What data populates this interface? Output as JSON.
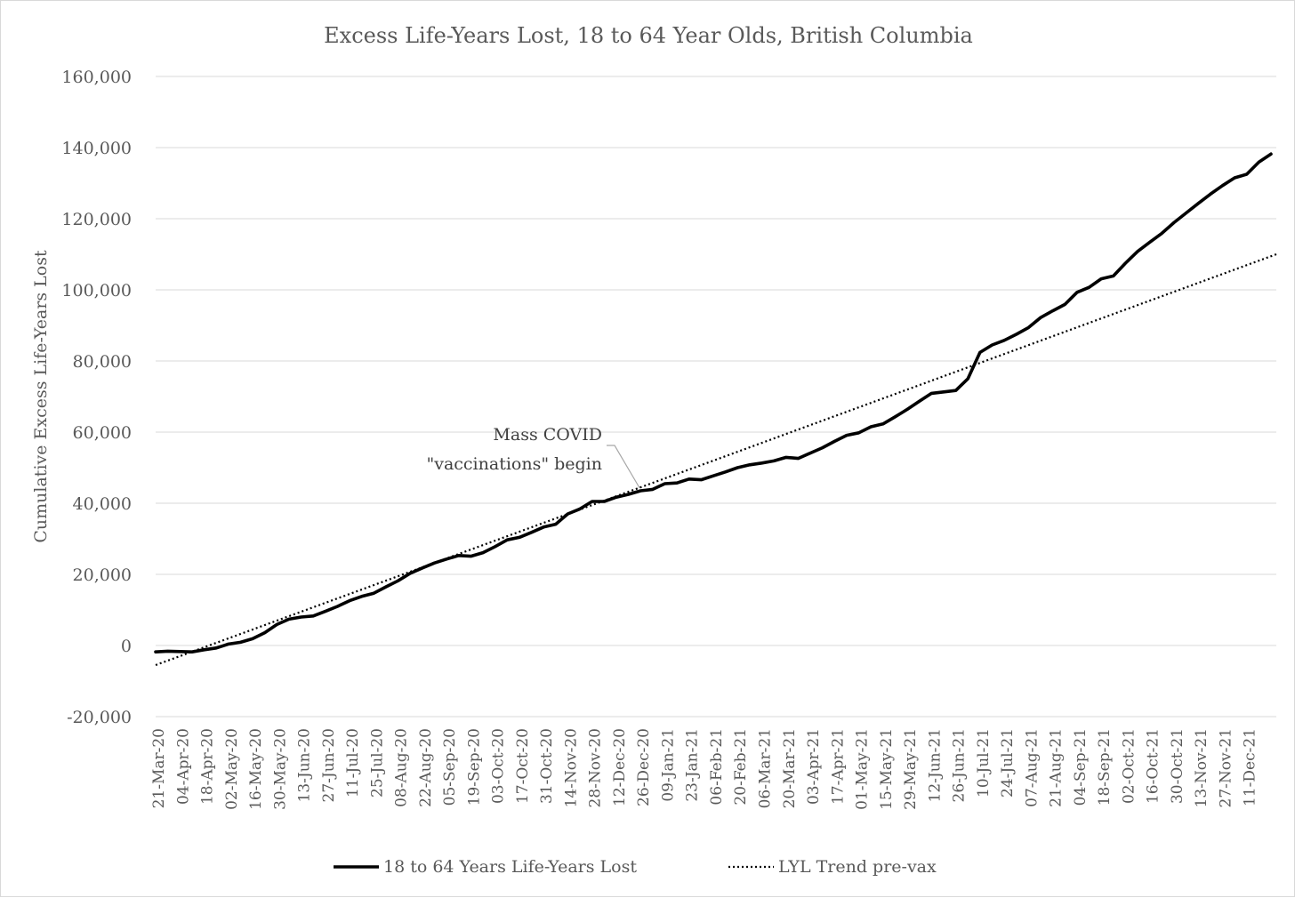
{
  "chart_data": {
    "type": "line",
    "title": "Excess Life-Years Lost, 18 to 64 Year Olds, British Columbia",
    "ylabel": "Cumulative Excess Life-Years Lost",
    "xlabel": "",
    "ylim": [
      -20000,
      160000
    ],
    "yticks": [
      -20000,
      0,
      20000,
      40000,
      60000,
      80000,
      100000,
      120000,
      140000,
      160000
    ],
    "ytick_labels": [
      "-20,000",
      "0",
      "20,000",
      "40,000",
      "60,000",
      "80,000",
      "100,000",
      "120,000",
      "140,000",
      "160,000"
    ],
    "grid": true,
    "legend_position": "bottom",
    "x_tick_labels": [
      "21-Mar-20",
      "04-Apr-20",
      "18-Apr-20",
      "02-May-20",
      "16-May-20",
      "30-May-20",
      "13-Jun-20",
      "27-Jun-20",
      "11-Jul-20",
      "25-Jul-20",
      "08-Aug-20",
      "22-Aug-20",
      "05-Sep-20",
      "19-Sep-20",
      "03-Oct-20",
      "17-Oct-20",
      "31-Oct-20",
      "14-Nov-20",
      "28-Nov-20",
      "12-Dec-20",
      "26-Dec-20",
      "09-Jan-21",
      "23-Jan-21",
      "06-Feb-21",
      "20-Feb-21",
      "06-Mar-21",
      "20-Mar-21",
      "03-Apr-21",
      "17-Apr-21",
      "01-May-21",
      "15-May-21",
      "29-May-21",
      "12-Jun-21",
      "26-Jun-21",
      "10-Jul-21",
      "24-Jul-21",
      "07-Aug-21",
      "21-Aug-21",
      "04-Sep-21",
      "18-Sep-21",
      "02-Oct-21",
      "16-Oct-21",
      "30-Oct-21",
      "13-Nov-21",
      "27-Nov-21",
      "11-Dec-21"
    ],
    "series": [
      {
        "name": "18 to 64 Years Life-Years Lost",
        "style": "solid",
        "color": "#000000",
        "values": [
          -1800,
          -1600,
          -1700,
          -1800,
          -1200,
          -700,
          400,
          900,
          1900,
          3600,
          5900,
          7400,
          8000,
          8300,
          9600,
          11000,
          12600,
          13800,
          14700,
          16500,
          18200,
          20300,
          21800,
          23200,
          24300,
          25300,
          25100,
          26100,
          27800,
          29700,
          30400,
          31800,
          33300,
          34100,
          37000,
          38400,
          40500,
          40500,
          41700,
          42500,
          43500,
          43900,
          45500,
          45700,
          46800,
          46600,
          47700,
          48800,
          50000,
          50800,
          51300,
          51900,
          52900,
          52600,
          54100,
          55600,
          57400,
          59100,
          59800,
          61500,
          62300,
          64300,
          66400,
          68700,
          70900,
          71300,
          71700,
          75000,
          82400,
          84500,
          85800,
          87500,
          89400,
          92200,
          94100,
          95900,
          99300,
          100700,
          103100,
          103900,
          107500,
          110800,
          113400,
          115900,
          118900,
          121600,
          124300,
          126900,
          129300,
          131500,
          132500,
          135900,
          138200
        ]
      },
      {
        "name": "LYL Trend pre-vax",
        "style": "dotted",
        "color": "#000000",
        "start": -5500,
        "end": 110000
      }
    ],
    "annotation": {
      "lines": [
        "Mass COVID",
        "\"vaccinations\" begin"
      ],
      "target_week": 40
    }
  }
}
